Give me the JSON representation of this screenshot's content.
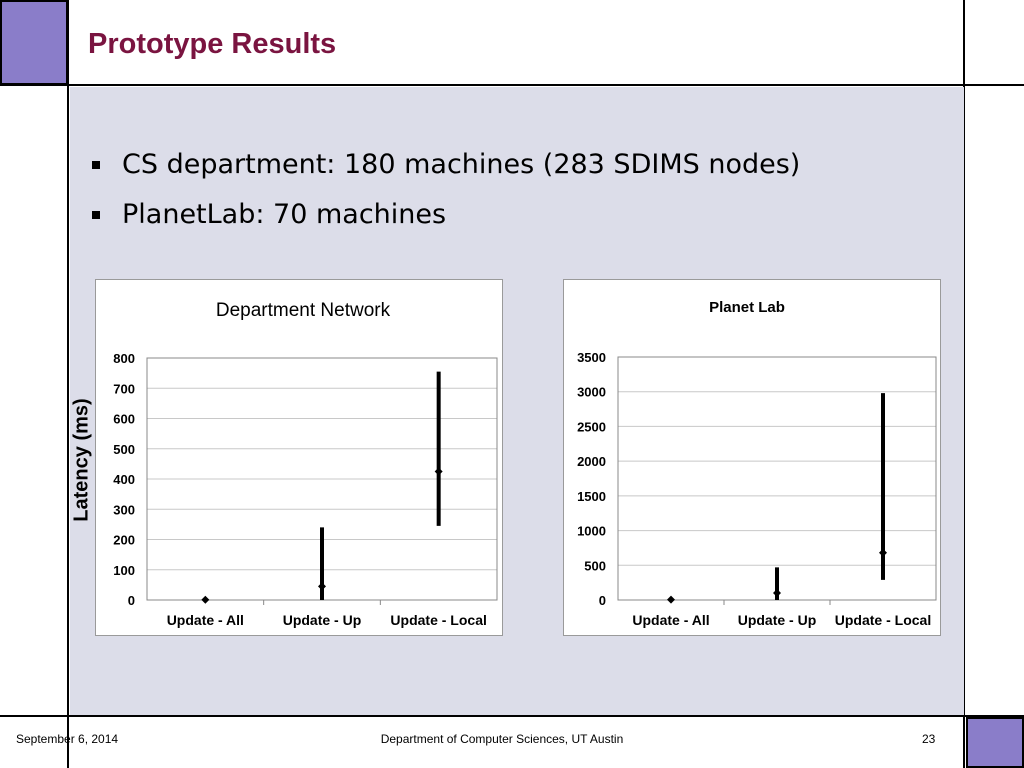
{
  "slide": {
    "title": "Prototype Results",
    "bullets": [
      "CS department: 180 machines (283 SDIMS nodes)",
      "PlanetLab: 70 machines"
    ],
    "y_axis_label": "Latency (ms)"
  },
  "footer": {
    "date": "September 6, 2014",
    "department": "Department of Computer Sciences, UT Austin",
    "page_number": "23"
  },
  "colors": {
    "title": "#7a1440",
    "accent_square": "#8a7dc9",
    "content_background": "#dcdde9"
  },
  "chart_data": [
    {
      "type": "scatter",
      "title": "Department Network",
      "categories": [
        "Update - All",
        "Update - Up",
        "Update - Local"
      ],
      "ylim": [
        0,
        800
      ],
      "yticks": [
        0,
        100,
        200,
        300,
        400,
        500,
        600,
        700,
        800
      ],
      "ylabel": "Latency (ms)",
      "series": [
        {
          "values": [
            1,
            45,
            425
          ],
          "low": [
            1,
            0,
            245
          ],
          "high": [
            1,
            240,
            755
          ]
        }
      ],
      "grid": true
    },
    {
      "type": "scatter",
      "title": "Planet Lab",
      "categories": [
        "Update - All",
        "Update - Up",
        "Update - Local"
      ],
      "ylim": [
        0,
        3500
      ],
      "yticks": [
        0,
        500,
        1000,
        1500,
        2000,
        2500,
        3000,
        3500
      ],
      "ylabel": "",
      "series": [
        {
          "values": [
            5,
            100,
            680
          ],
          "low": [
            5,
            0,
            290
          ],
          "high": [
            5,
            470,
            2980
          ]
        }
      ],
      "grid": true
    }
  ]
}
